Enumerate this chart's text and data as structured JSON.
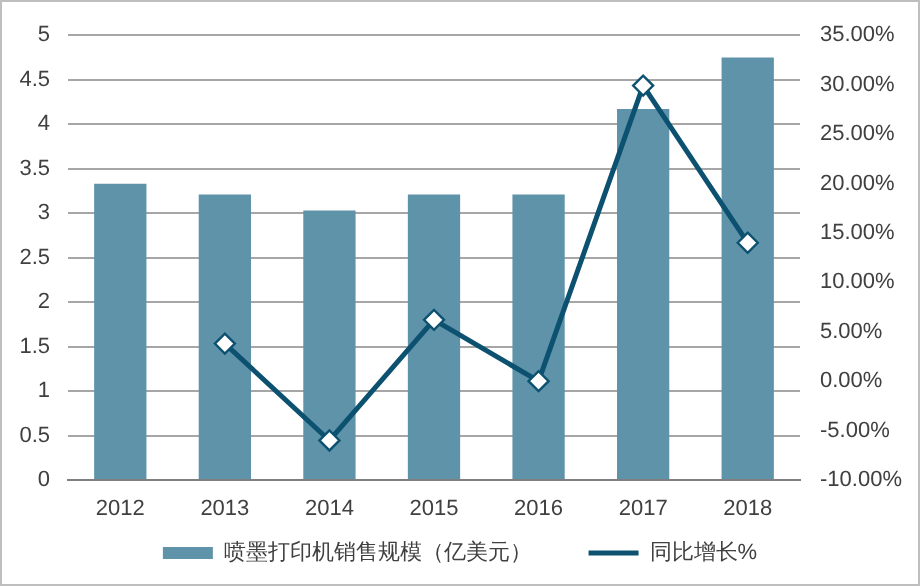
{
  "chart_data": {
    "type": "bar",
    "categories": [
      "2012",
      "2013",
      "2014",
      "2015",
      "2016",
      "2017",
      "2018"
    ],
    "series": [
      {
        "name": "喷墨打印机销售规模（亿美元）",
        "color": "#5f93aa",
        "values": [
          3.33,
          3.21,
          3.03,
          3.21,
          3.21,
          4.17,
          4.75
        ]
      },
      {
        "name": "同比增长%",
        "type": "line",
        "axis": "y2",
        "color": "#0c5270",
        "values": [
          null,
          3.8,
          -6.0,
          6.2,
          0.0,
          29.9,
          14.0
        ]
      }
    ],
    "ylim": [
      0,
      5
    ],
    "yticks": [
      0,
      0.5,
      1,
      1.5,
      2,
      2.5,
      3,
      3.5,
      4,
      4.5,
      5
    ],
    "y2lim": [
      -10,
      35
    ],
    "y2ticks": [
      {
        "value": -10,
        "label": "-10.00%"
      },
      {
        "value": -5,
        "label": "-5.00%"
      },
      {
        "value": 0,
        "label": "0.00%"
      },
      {
        "value": 5,
        "label": "5.00%"
      },
      {
        "value": 10,
        "label": "10.00%"
      },
      {
        "value": 15,
        "label": "15.00%"
      },
      {
        "value": 20,
        "label": "20.00%"
      },
      {
        "value": 25,
        "label": "25.00%"
      },
      {
        "value": 30,
        "label": "30.00%"
      },
      {
        "value": 35,
        "label": "35.00%"
      }
    ],
    "grid": "y",
    "legend": "bottom",
    "marker": "diamond",
    "line_style": "solid"
  }
}
